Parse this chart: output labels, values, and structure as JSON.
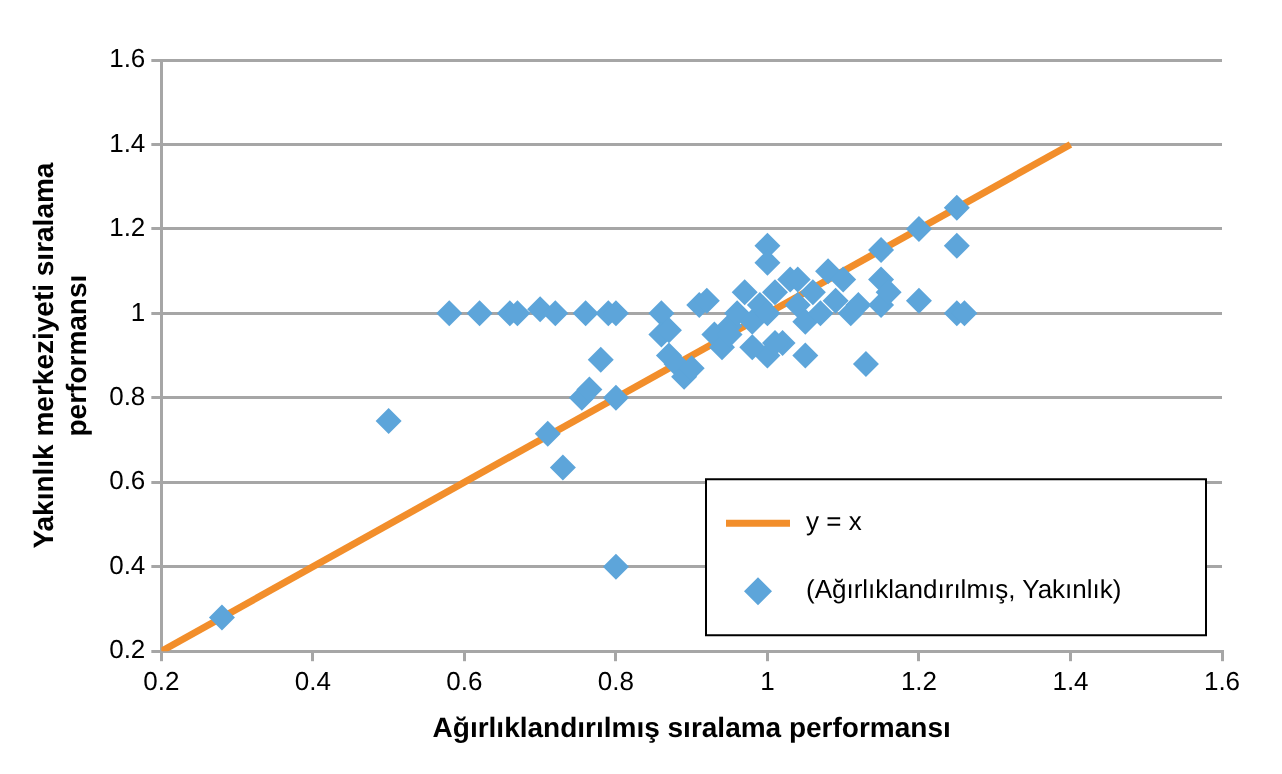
{
  "chart_data": {
    "type": "scatter",
    "xlabel": "Ağırlıklandırılmış sıralama performansı",
    "ylabel": "Yakınlık merkeziyeti sıralama performansı",
    "xlim": [
      0.2,
      1.6
    ],
    "xticks": [
      0.2,
      0.4,
      0.6,
      0.8,
      1,
      1.2,
      1.4,
      1.6
    ],
    "ylim": [
      0.2,
      1.6
    ],
    "yticks": [
      0.2,
      0.4,
      0.6,
      0.8,
      1,
      1.2,
      1.4,
      1.6
    ],
    "grid": "y",
    "legend": "bottom right",
    "series": [
      {
        "name": "y = x",
        "type": "line",
        "marker": "none",
        "color": "#f28e2b",
        "x": [
          0.2,
          1.4
        ],
        "values": [
          0.2,
          1.4
        ]
      },
      {
        "name": "(Ağırlıklandırılmış, Yakınlık)",
        "color": "#5da5da",
        "marker": "diamond",
        "x": [
          0.28,
          0.5,
          0.8,
          0.71,
          0.73,
          0.755,
          0.765,
          0.78,
          0.8,
          0.58,
          0.62,
          0.66,
          0.67,
          0.7,
          0.72,
          0.76,
          0.79,
          0.8,
          0.86,
          0.86,
          0.87,
          0.87,
          0.88,
          0.89,
          0.9,
          0.91,
          0.92,
          0.93,
          0.94,
          0.95,
          0.96,
          0.97,
          0.98,
          0.99,
          1.0,
          1.0,
          1.0,
          1.01,
          1.02,
          1.03,
          1.04,
          1.05,
          1.06,
          1.07,
          1.08,
          1.09,
          1.1,
          1.11,
          1.12,
          1.0,
          1.01,
          1.05,
          0.95,
          0.98,
          1.04,
          1.13,
          1.15,
          1.15,
          1.16,
          1.15,
          1.2,
          1.25,
          1.25,
          1.2,
          1.25,
          1.26
        ],
        "values": [
          0.28,
          0.745,
          0.4,
          0.715,
          0.635,
          0.8,
          0.82,
          0.89,
          0.8,
          1.0,
          1.0,
          1.0,
          1.0,
          1.01,
          1.0,
          1.0,
          1.0,
          1.0,
          1.0,
          0.95,
          0.96,
          0.9,
          0.88,
          0.85,
          0.87,
          1.02,
          1.03,
          0.95,
          0.92,
          0.97,
          1.0,
          1.05,
          0.98,
          1.02,
          1.16,
          1.12,
          1.0,
          1.05,
          0.93,
          1.08,
          1.02,
          0.98,
          1.05,
          1.0,
          1.1,
          1.03,
          1.08,
          1.0,
          1.02,
          0.9,
          0.93,
          0.9,
          0.95,
          0.92,
          1.08,
          0.88,
          1.02,
          1.08,
          1.05,
          1.15,
          1.2,
          1.25,
          1.16,
          1.03,
          1.0,
          1.0
        ]
      }
    ]
  }
}
